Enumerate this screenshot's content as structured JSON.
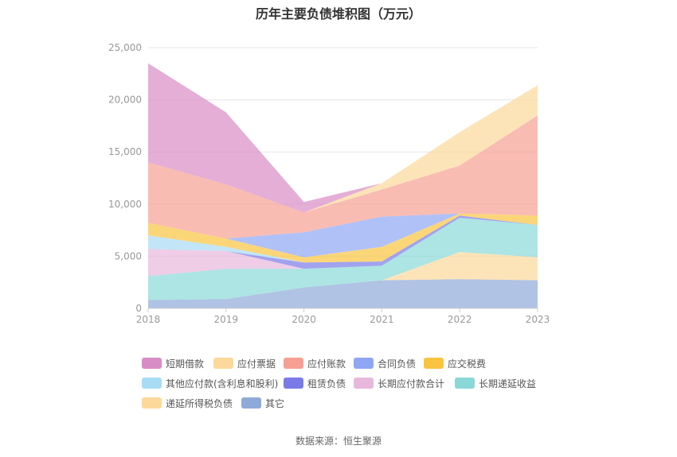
{
  "title": "历年主要负债堆积图（万元）",
  "source": "数据来源：恒生聚源",
  "chart_data": {
    "type": "area",
    "stacked": true,
    "categories": [
      "2018",
      "2019",
      "2020",
      "2021",
      "2022",
      "2023"
    ],
    "ylim": [
      0,
      25000
    ],
    "yticks": [
      "0",
      "5,000",
      "10,000",
      "15,000",
      "20,000",
      "25,000"
    ],
    "ytick_values": [
      0,
      5000,
      10000,
      15000,
      20000,
      25000
    ],
    "grid": true,
    "legend_position": "bottom",
    "series": [
      {
        "name": "其它",
        "color": "#8eaad8",
        "values": [
          800,
          900,
          2000,
          2700,
          2800,
          2700
        ]
      },
      {
        "name": "递延所得税负债",
        "color": "#fcd99a",
        "values": [
          0,
          0,
          0,
          0,
          2600,
          2200
        ]
      },
      {
        "name": "长期递延收益",
        "color": "#8ad8d8",
        "values": [
          2300,
          2900,
          1800,
          1400,
          3300,
          3100
        ]
      },
      {
        "name": "长期应付款合计",
        "color": "#e8b8dc",
        "values": [
          2600,
          1700,
          0,
          0,
          0,
          0
        ]
      },
      {
        "name": "租赁负债",
        "color": "#7b7be8",
        "values": [
          0,
          0,
          600,
          400,
          200,
          0
        ]
      },
      {
        "name": "其他应付款(含利息和股利)",
        "color": "#a8dcf5",
        "values": [
          1300,
          400,
          0,
          0,
          0,
          0
        ]
      },
      {
        "name": "应交税费",
        "color": "#f9c440",
        "values": [
          1200,
          800,
          500,
          1400,
          200,
          900
        ]
      },
      {
        "name": "合同负债",
        "color": "#8fa6f5",
        "values": [
          0,
          0,
          2400,
          2900,
          0,
          0
        ]
      },
      {
        "name": "应付账款",
        "color": "#f6a093",
        "values": [
          5800,
          5200,
          1900,
          2600,
          4600,
          9600
        ]
      },
      {
        "name": "应付票据",
        "color": "#fcd99a",
        "values": [
          0,
          0,
          0,
          600,
          3200,
          2900
        ]
      },
      {
        "name": "短期借款",
        "color": "#d88cc6",
        "values": [
          9500,
          6900,
          1000,
          0,
          0,
          0
        ]
      }
    ],
    "legend_order": [
      "短期借款",
      "应付票据",
      "应付账款",
      "合同负债",
      "应交税费",
      "其他应付款(含利息和股利)",
      "租赁负债",
      "长期应付款合计",
      "长期递延收益",
      "递延所得税负债",
      "其它"
    ]
  }
}
